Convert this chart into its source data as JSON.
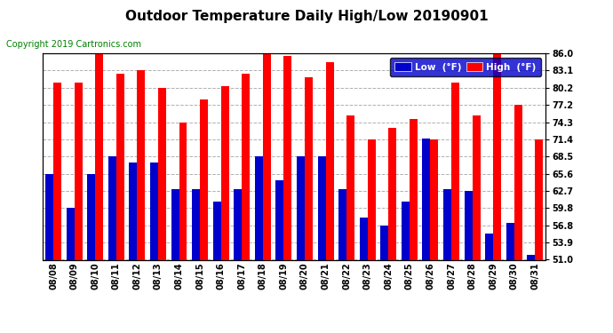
{
  "title": "Outdoor Temperature Daily High/Low 20190901",
  "copyright": "Copyright 2019 Cartronics.com",
  "legend_low": "Low  (°F)",
  "legend_high": "High  (°F)",
  "dates": [
    "08/08",
    "08/09",
    "08/10",
    "08/11",
    "08/12",
    "08/13",
    "08/14",
    "08/15",
    "08/16",
    "08/17",
    "08/18",
    "08/19",
    "08/20",
    "08/21",
    "08/22",
    "08/23",
    "08/24",
    "08/25",
    "08/26",
    "08/27",
    "08/28",
    "08/29",
    "08/30",
    "08/31"
  ],
  "highs": [
    81.0,
    81.0,
    86.0,
    82.5,
    83.1,
    80.2,
    74.3,
    78.1,
    80.4,
    82.5,
    86.0,
    85.5,
    82.0,
    84.5,
    75.5,
    71.4,
    73.4,
    74.8,
    71.4,
    81.0,
    75.5,
    86.0,
    77.2,
    71.4
  ],
  "lows": [
    65.6,
    59.8,
    65.6,
    68.5,
    67.5,
    67.5,
    63.0,
    63.0,
    60.8,
    63.0,
    68.5,
    64.4,
    68.5,
    68.5,
    63.0,
    58.1,
    56.8,
    60.8,
    71.5,
    63.0,
    62.6,
    55.4,
    57.2,
    51.8
  ],
  "ylim_min": 51.0,
  "ylim_max": 86.0,
  "yticks": [
    51.0,
    53.9,
    56.8,
    59.8,
    62.7,
    65.6,
    68.5,
    71.4,
    74.3,
    77.2,
    80.2,
    83.1,
    86.0
  ],
  "high_color": "#ff0000",
  "low_color": "#0000cc",
  "bg_color": "#ffffff",
  "grid_color": "#b0b0b0",
  "title_fontsize": 11,
  "copyright_fontsize": 7,
  "bar_width": 0.38
}
